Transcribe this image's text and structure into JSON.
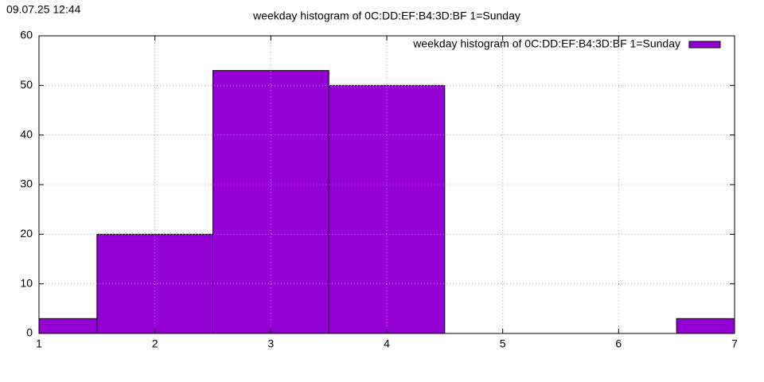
{
  "chart_data": {
    "type": "bar",
    "title": "weekday histogram of 0C:DD:EF:B4:3D:BF 1=Sunday",
    "timestamp": "09.07.25 12:44",
    "x": [
      1,
      2,
      3,
      4,
      5,
      6,
      7
    ],
    "series": [
      {
        "name": "weekday histogram of 0C:DD:EF:B4:3D:BF 1=Sunday",
        "color": "#9400d3",
        "values": [
          3,
          20,
          53,
          50,
          0,
          0,
          3
        ]
      }
    ],
    "xlim": [
      1,
      7
    ],
    "ylim": [
      0,
      60
    ],
    "xticks": [
      1,
      2,
      3,
      4,
      5,
      6,
      7
    ],
    "yticks": [
      0,
      10,
      20,
      30,
      40,
      50,
      60
    ],
    "grid": true,
    "legend": "top right"
  }
}
